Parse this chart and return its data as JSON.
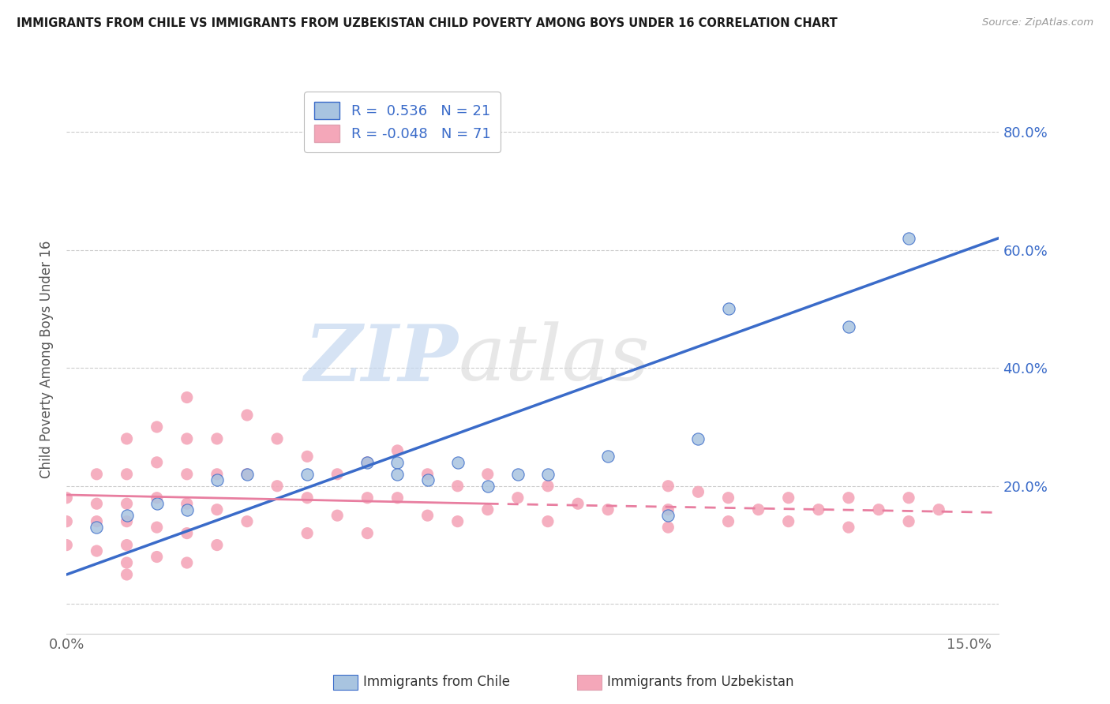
{
  "title": "IMMIGRANTS FROM CHILE VS IMMIGRANTS FROM UZBEKISTAN CHILD POVERTY AMONG BOYS UNDER 16 CORRELATION CHART",
  "source": "Source: ZipAtlas.com",
  "ylabel": "Child Poverty Among Boys Under 16",
  "xlim": [
    0.0,
    0.155
  ],
  "ylim": [
    -0.05,
    0.88
  ],
  "yticks": [
    0.0,
    0.2,
    0.4,
    0.6,
    0.8
  ],
  "ytick_labels": [
    "",
    "20.0%",
    "40.0%",
    "60.0%",
    "80.0%"
  ],
  "xtick_labels": [
    "0.0%",
    "15.0%"
  ],
  "watermark_zip": "ZIP",
  "watermark_atlas": "atlas",
  "chile_R": 0.536,
  "chile_N": 21,
  "uzbekistan_R": -0.048,
  "uzbekistan_N": 71,
  "chile_color": "#a8c4e0",
  "uzbekistan_color": "#f4a7b9",
  "chile_line_color": "#3a6bc9",
  "uzbekistan_line_color": "#e87ea0",
  "background_color": "#ffffff",
  "grid_color": "#cccccc",
  "chile_scatter_x": [
    0.005,
    0.01,
    0.015,
    0.02,
    0.025,
    0.03,
    0.04,
    0.05,
    0.055,
    0.055,
    0.06,
    0.065,
    0.07,
    0.075,
    0.08,
    0.09,
    0.1,
    0.105,
    0.11,
    0.13,
    0.14
  ],
  "chile_scatter_y": [
    0.13,
    0.15,
    0.17,
    0.16,
    0.21,
    0.22,
    0.22,
    0.24,
    0.24,
    0.22,
    0.21,
    0.24,
    0.2,
    0.22,
    0.22,
    0.25,
    0.15,
    0.28,
    0.5,
    0.47,
    0.62
  ],
  "uzbekistan_scatter_x": [
    0.0,
    0.0,
    0.0,
    0.005,
    0.005,
    0.005,
    0.005,
    0.01,
    0.01,
    0.01,
    0.01,
    0.01,
    0.01,
    0.01,
    0.015,
    0.015,
    0.015,
    0.015,
    0.015,
    0.02,
    0.02,
    0.02,
    0.02,
    0.02,
    0.02,
    0.025,
    0.025,
    0.025,
    0.025,
    0.03,
    0.03,
    0.03,
    0.035,
    0.035,
    0.04,
    0.04,
    0.04,
    0.045,
    0.045,
    0.05,
    0.05,
    0.05,
    0.055,
    0.055,
    0.06,
    0.06,
    0.065,
    0.065,
    0.07,
    0.07,
    0.075,
    0.08,
    0.08,
    0.085,
    0.09,
    0.1,
    0.1,
    0.1,
    0.105,
    0.11,
    0.11,
    0.115,
    0.12,
    0.12,
    0.125,
    0.13,
    0.13,
    0.135,
    0.14,
    0.14,
    0.145
  ],
  "uzbekistan_scatter_y": [
    0.18,
    0.14,
    0.1,
    0.22,
    0.17,
    0.14,
    0.09,
    0.28,
    0.22,
    0.17,
    0.14,
    0.1,
    0.07,
    0.05,
    0.3,
    0.24,
    0.18,
    0.13,
    0.08,
    0.35,
    0.28,
    0.22,
    0.17,
    0.12,
    0.07,
    0.28,
    0.22,
    0.16,
    0.1,
    0.32,
    0.22,
    0.14,
    0.28,
    0.2,
    0.25,
    0.18,
    0.12,
    0.22,
    0.15,
    0.24,
    0.18,
    0.12,
    0.26,
    0.18,
    0.22,
    0.15,
    0.2,
    0.14,
    0.22,
    0.16,
    0.18,
    0.2,
    0.14,
    0.17,
    0.16,
    0.2,
    0.16,
    0.13,
    0.19,
    0.18,
    0.14,
    0.16,
    0.18,
    0.14,
    0.16,
    0.18,
    0.13,
    0.16,
    0.18,
    0.14,
    0.16
  ],
  "legend_label_chile": "R =  0.536   N = 21",
  "legend_label_uzbek": "R = -0.048   N = 71",
  "bottom_legend_chile": "Immigrants from Chile",
  "bottom_legend_uzbek": "Immigrants from Uzbekistan"
}
